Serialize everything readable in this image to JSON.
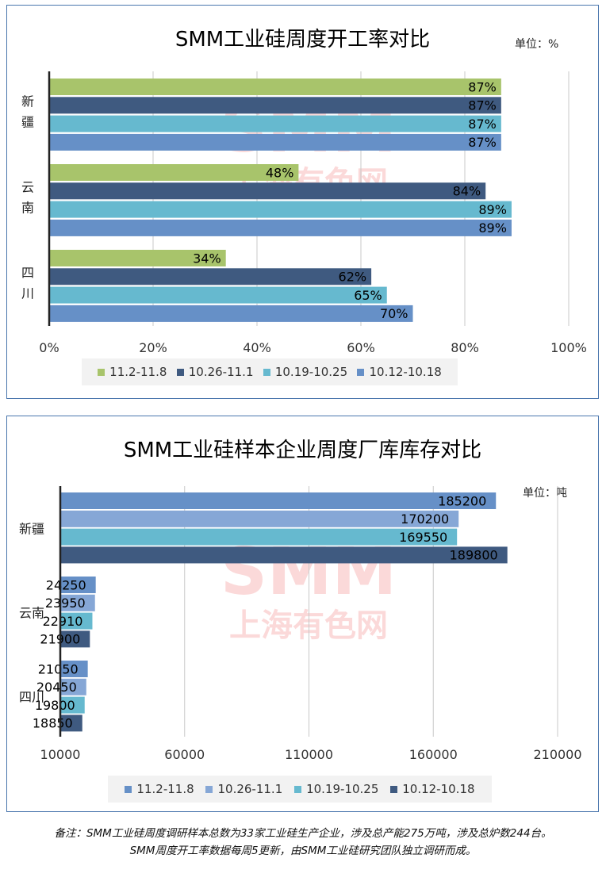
{
  "colors": {
    "green": "#a8c46b",
    "navy": "#3f5a80",
    "teal": "#66b9cf",
    "blue": "#6690c7",
    "blue_mid": "#86a7d6",
    "border": "#4a76ad",
    "watermark": "#eb5050"
  },
  "watermark": {
    "line1": "SMM",
    "line2": "上海有色网"
  },
  "chart1": {
    "title": "SMM工业硅周度开工率对比",
    "unit": "单位：%",
    "chart_data": {
      "type": "bar",
      "orientation": "horizontal",
      "categories": [
        "新疆",
        "云南",
        "四川"
      ],
      "category_labels": [
        [
          "新",
          "疆"
        ],
        [
          "云",
          "南"
        ],
        [
          "四",
          "川"
        ]
      ],
      "series": [
        {
          "name": "11.2-11.8",
          "color": "#a8c46b",
          "values": [
            87,
            48,
            34
          ]
        },
        {
          "name": "10.26-11.1",
          "color": "#3f5a80",
          "values": [
            87,
            84,
            62
          ]
        },
        {
          "name": "10.19-10.25",
          "color": "#66b9cf",
          "values": [
            87,
            89,
            65
          ]
        },
        {
          "name": "10.12-10.18",
          "color": "#6690c7",
          "values": [
            87,
            89,
            70
          ]
        }
      ],
      "value_suffix": "%",
      "xlim": [
        0,
        100
      ],
      "ticks": [
        "0%",
        "20%",
        "40%",
        "60%",
        "80%",
        "100%"
      ],
      "tick_values": [
        0,
        20,
        40,
        60,
        80,
        100
      ],
      "grid": true,
      "legend_position": "bottom"
    }
  },
  "chart2": {
    "title": "SMM工业硅样本企业周度厂库库存对比",
    "unit": "单位：吨",
    "chart_data": {
      "type": "bar",
      "orientation": "horizontal",
      "categories": [
        "新疆",
        "云南",
        "四川"
      ],
      "series": [
        {
          "name": "11.2-11.8",
          "color": "#6690c7",
          "values": [
            185200,
            24250,
            21050
          ]
        },
        {
          "name": "10.26-11.1",
          "color": "#86a7d6",
          "values": [
            170200,
            23950,
            20450
          ]
        },
        {
          "name": "10.19-10.25",
          "color": "#66b9cf",
          "values": [
            169550,
            22910,
            19800
          ]
        },
        {
          "name": "10.12-10.18",
          "color": "#3f5a80",
          "values": [
            189800,
            21900,
            18850
          ]
        }
      ],
      "xlim": [
        10000,
        210000
      ],
      "ticks": [
        "10000",
        "60000",
        "110000",
        "160000",
        "210000"
      ],
      "tick_values": [
        10000,
        60000,
        110000,
        160000,
        210000
      ],
      "grid": true,
      "legend_position": "bottom"
    }
  },
  "note": {
    "line1": "备注：SMM工业硅周度调研样本总数为33家工业硅生产企业，涉及总产能275万吨，涉及总炉数244台。",
    "line2": "SMM周度开工率数据每周5更新，由SMM工业硅研究团队独立调研而成。"
  }
}
